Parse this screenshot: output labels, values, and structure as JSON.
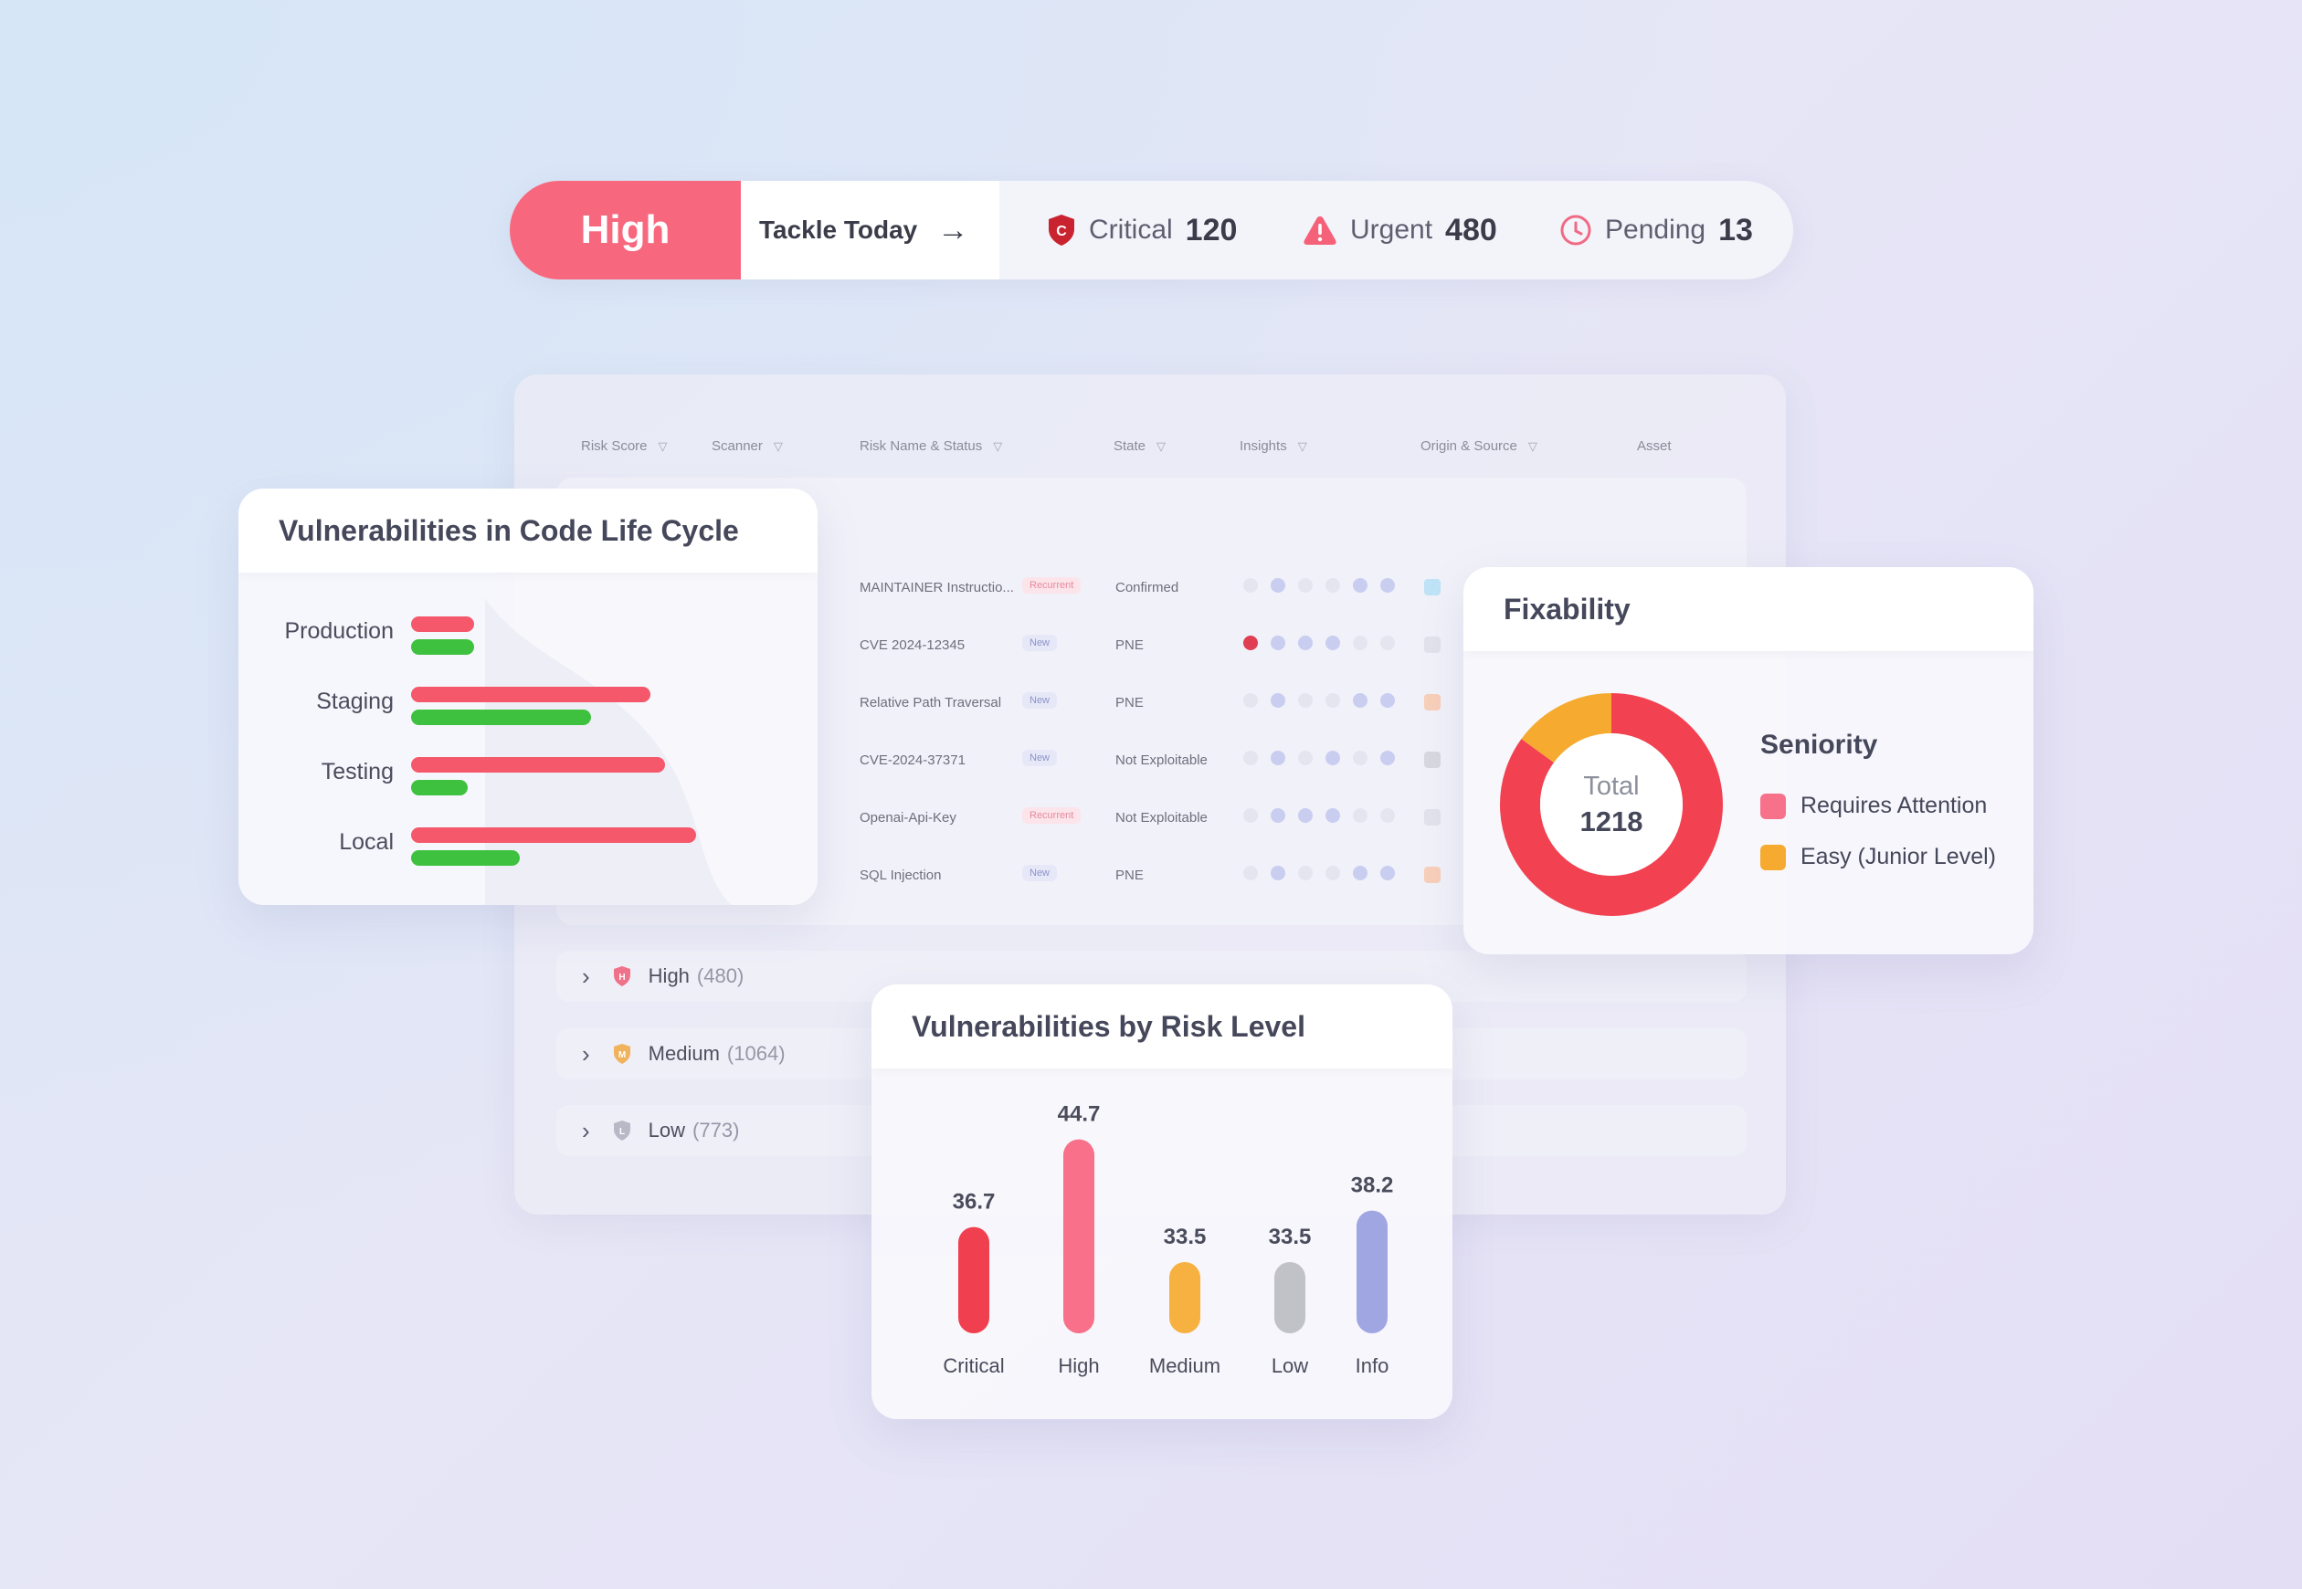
{
  "topbar": {
    "level": "High",
    "action_label": "Tackle Today",
    "critical": {
      "label": "Critical",
      "count": "120",
      "icon": "critical-shield-icon"
    },
    "urgent": {
      "label": "Urgent",
      "count": "480",
      "icon": "warning-triangle-icon"
    },
    "pending": {
      "label": "Pending",
      "count": "13",
      "icon": "clock-icon"
    }
  },
  "table": {
    "columns": [
      "Risk Score",
      "Scanner",
      "Risk Name & Status",
      "State",
      "Insights",
      "Origin & Source",
      "Asset"
    ],
    "rows": [
      {
        "name": "MAINTAINER Instructio...",
        "badge": "Recurrent",
        "state": "Confirmed"
      },
      {
        "name": "CVE 2024-12345",
        "badge": "New",
        "state": "PNE"
      },
      {
        "name": "Relative Path Traversal",
        "badge": "New",
        "state": "PNE"
      },
      {
        "name": "CVE-2024-37371",
        "badge": "New",
        "state": "Not Exploitable"
      },
      {
        "name": "Openai-Api-Key",
        "badge": "Recurrent",
        "state": "Not Exploitable"
      },
      {
        "name": "SQL Injection",
        "badge": "New",
        "state": "PNE"
      }
    ],
    "groups": [
      {
        "label": "High",
        "count": "(480)",
        "letter": "H",
        "color": "#f0728a"
      },
      {
        "label": "Medium",
        "count": "(1064)",
        "letter": "M",
        "color": "#f0b25a"
      },
      {
        "label": "Low",
        "count": "(773)",
        "letter": "L",
        "color": "#b7b9c6"
      }
    ]
  },
  "lifecycle": {
    "title": "Vulnerabilities in Code Life Cycle",
    "categories": [
      "Production",
      "Staging",
      "Testing",
      "Local"
    ],
    "red_values": [
      0.22,
      0.84,
      0.89,
      1.0
    ],
    "green_values": [
      0.22,
      0.63,
      0.2,
      0.38
    ],
    "colors": {
      "red": "#f4586a",
      "green": "#3ec13e"
    }
  },
  "fixability": {
    "title": "Fixability",
    "total_label": "Total",
    "total": "1218",
    "legend_title": "Seniority",
    "legend": [
      {
        "label": "Requires Attention",
        "color": "#f7718b"
      },
      {
        "label": "Easy (Junior Level)",
        "color": "#f6ab30"
      }
    ],
    "slices": [
      {
        "label": "Requires Attention",
        "fraction": 0.85,
        "color": "#f24150"
      },
      {
        "label": "Easy (Junior Level)",
        "fraction": 0.15,
        "color": "#f6ab30"
      }
    ]
  },
  "chart_data": {
    "type": "bar",
    "title": "Vulnerabilities by Risk Level",
    "categories": [
      "Critical",
      "High",
      "Medium",
      "Low",
      "Info"
    ],
    "values": [
      36.7,
      44.7,
      33.5,
      33.5,
      38.2
    ],
    "labels": [
      "36.7",
      "44.7",
      "33.5",
      "33.5",
      "38.2"
    ],
    "colors": [
      "#f0404f",
      "#f87089",
      "#f6b140",
      "#c1c1c8",
      "#9fa6e2"
    ],
    "xlabel": "",
    "ylabel": "",
    "grid": false
  }
}
